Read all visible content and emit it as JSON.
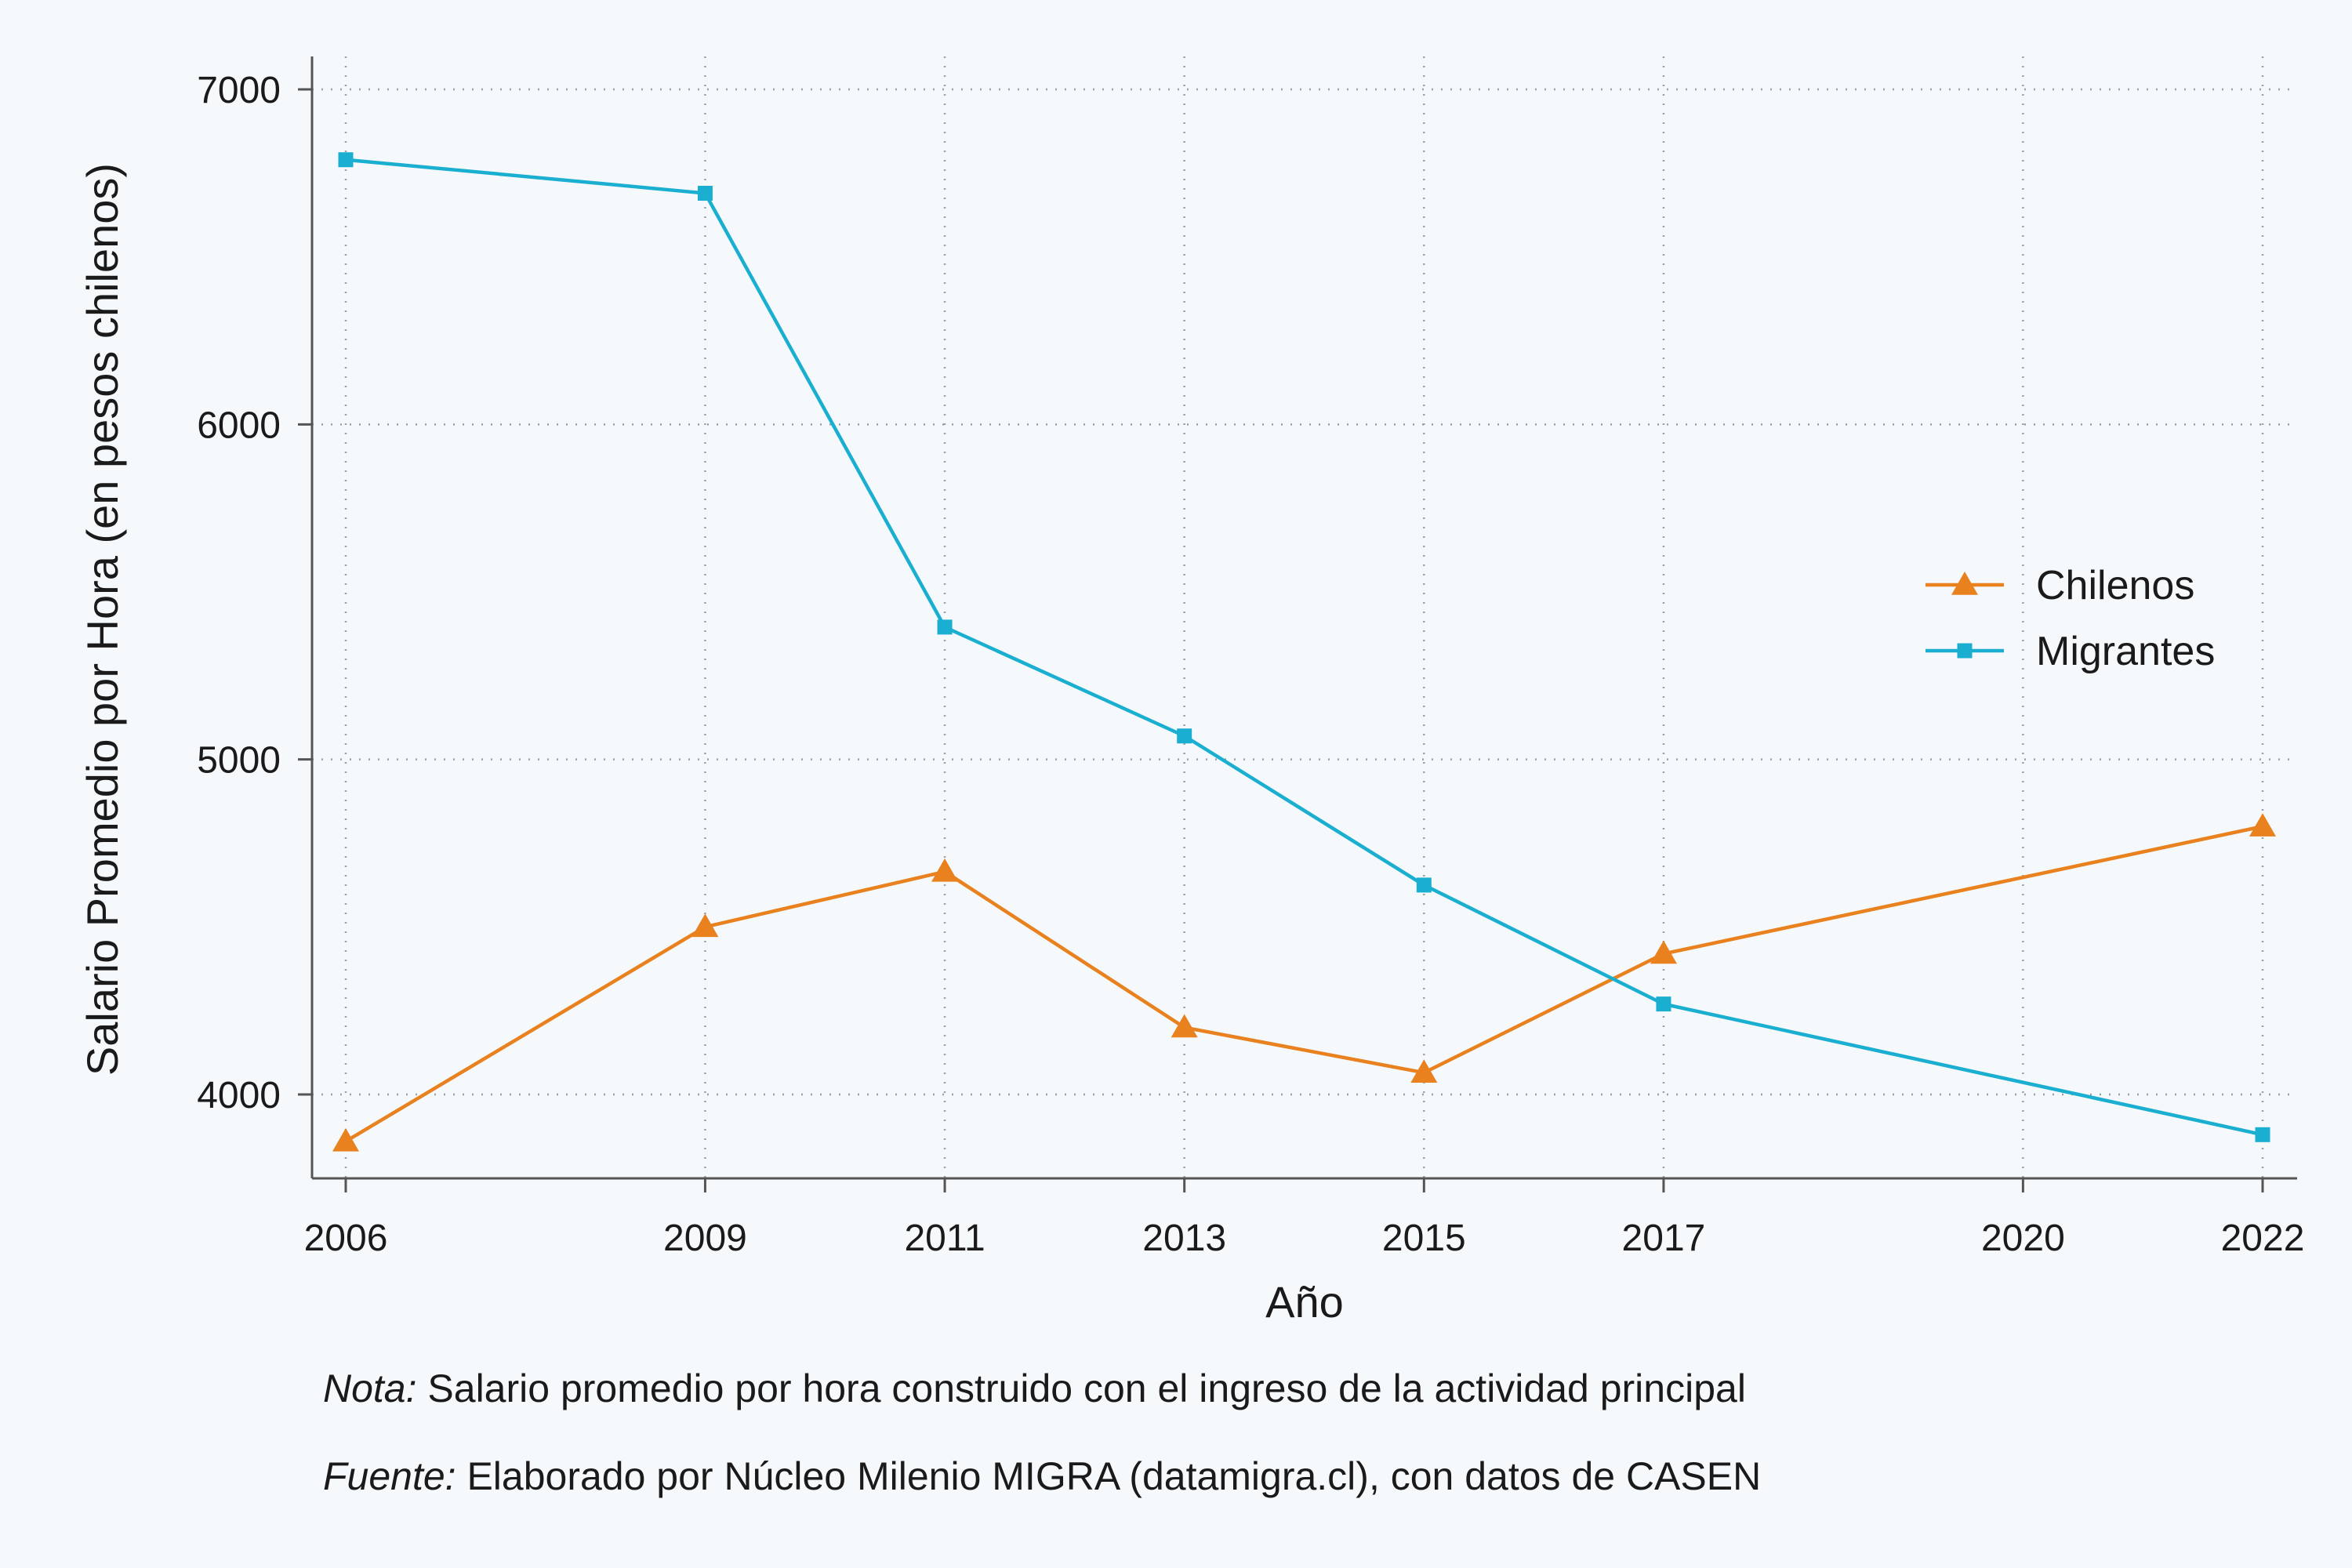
{
  "chart_data": {
    "type": "line",
    "x": [
      2006,
      2009,
      2011,
      2013,
      2015,
      2017,
      2022
    ],
    "x_ticks": [
      2006,
      2009,
      2011,
      2013,
      2015,
      2017,
      2020,
      2022
    ],
    "xlim": [
      2005.75,
      2022.25
    ],
    "ylim": [
      3750,
      7100
    ],
    "y_ticks": [
      4000,
      5000,
      6000,
      7000
    ],
    "xlabel": "Año",
    "ylabel": "Salario Promedio por Hora (en pesos chilenos)",
    "grid": true,
    "legend_position": "right",
    "series": [
      {
        "name": "Chilenos",
        "color": "#e8811e",
        "marker": "triangle",
        "values": [
          3860,
          4500,
          4665,
          4200,
          4065,
          4420,
          4800
        ]
      },
      {
        "name": "Migrantes",
        "color": "#1aafd0",
        "marker": "square",
        "values": [
          6790,
          6690,
          5395,
          5070,
          4625,
          4270,
          3880
        ]
      }
    ]
  },
  "notes": {
    "nota_lead": "Nota:",
    "nota_text": " Salario promedio por hora construido con el ingreso de la actividad principal",
    "fuente_lead": "Fuente:",
    "fuente_text": " Elaborado por Núcleo Milenio MIGRA (datamigra.cl), con datos de CASEN"
  }
}
